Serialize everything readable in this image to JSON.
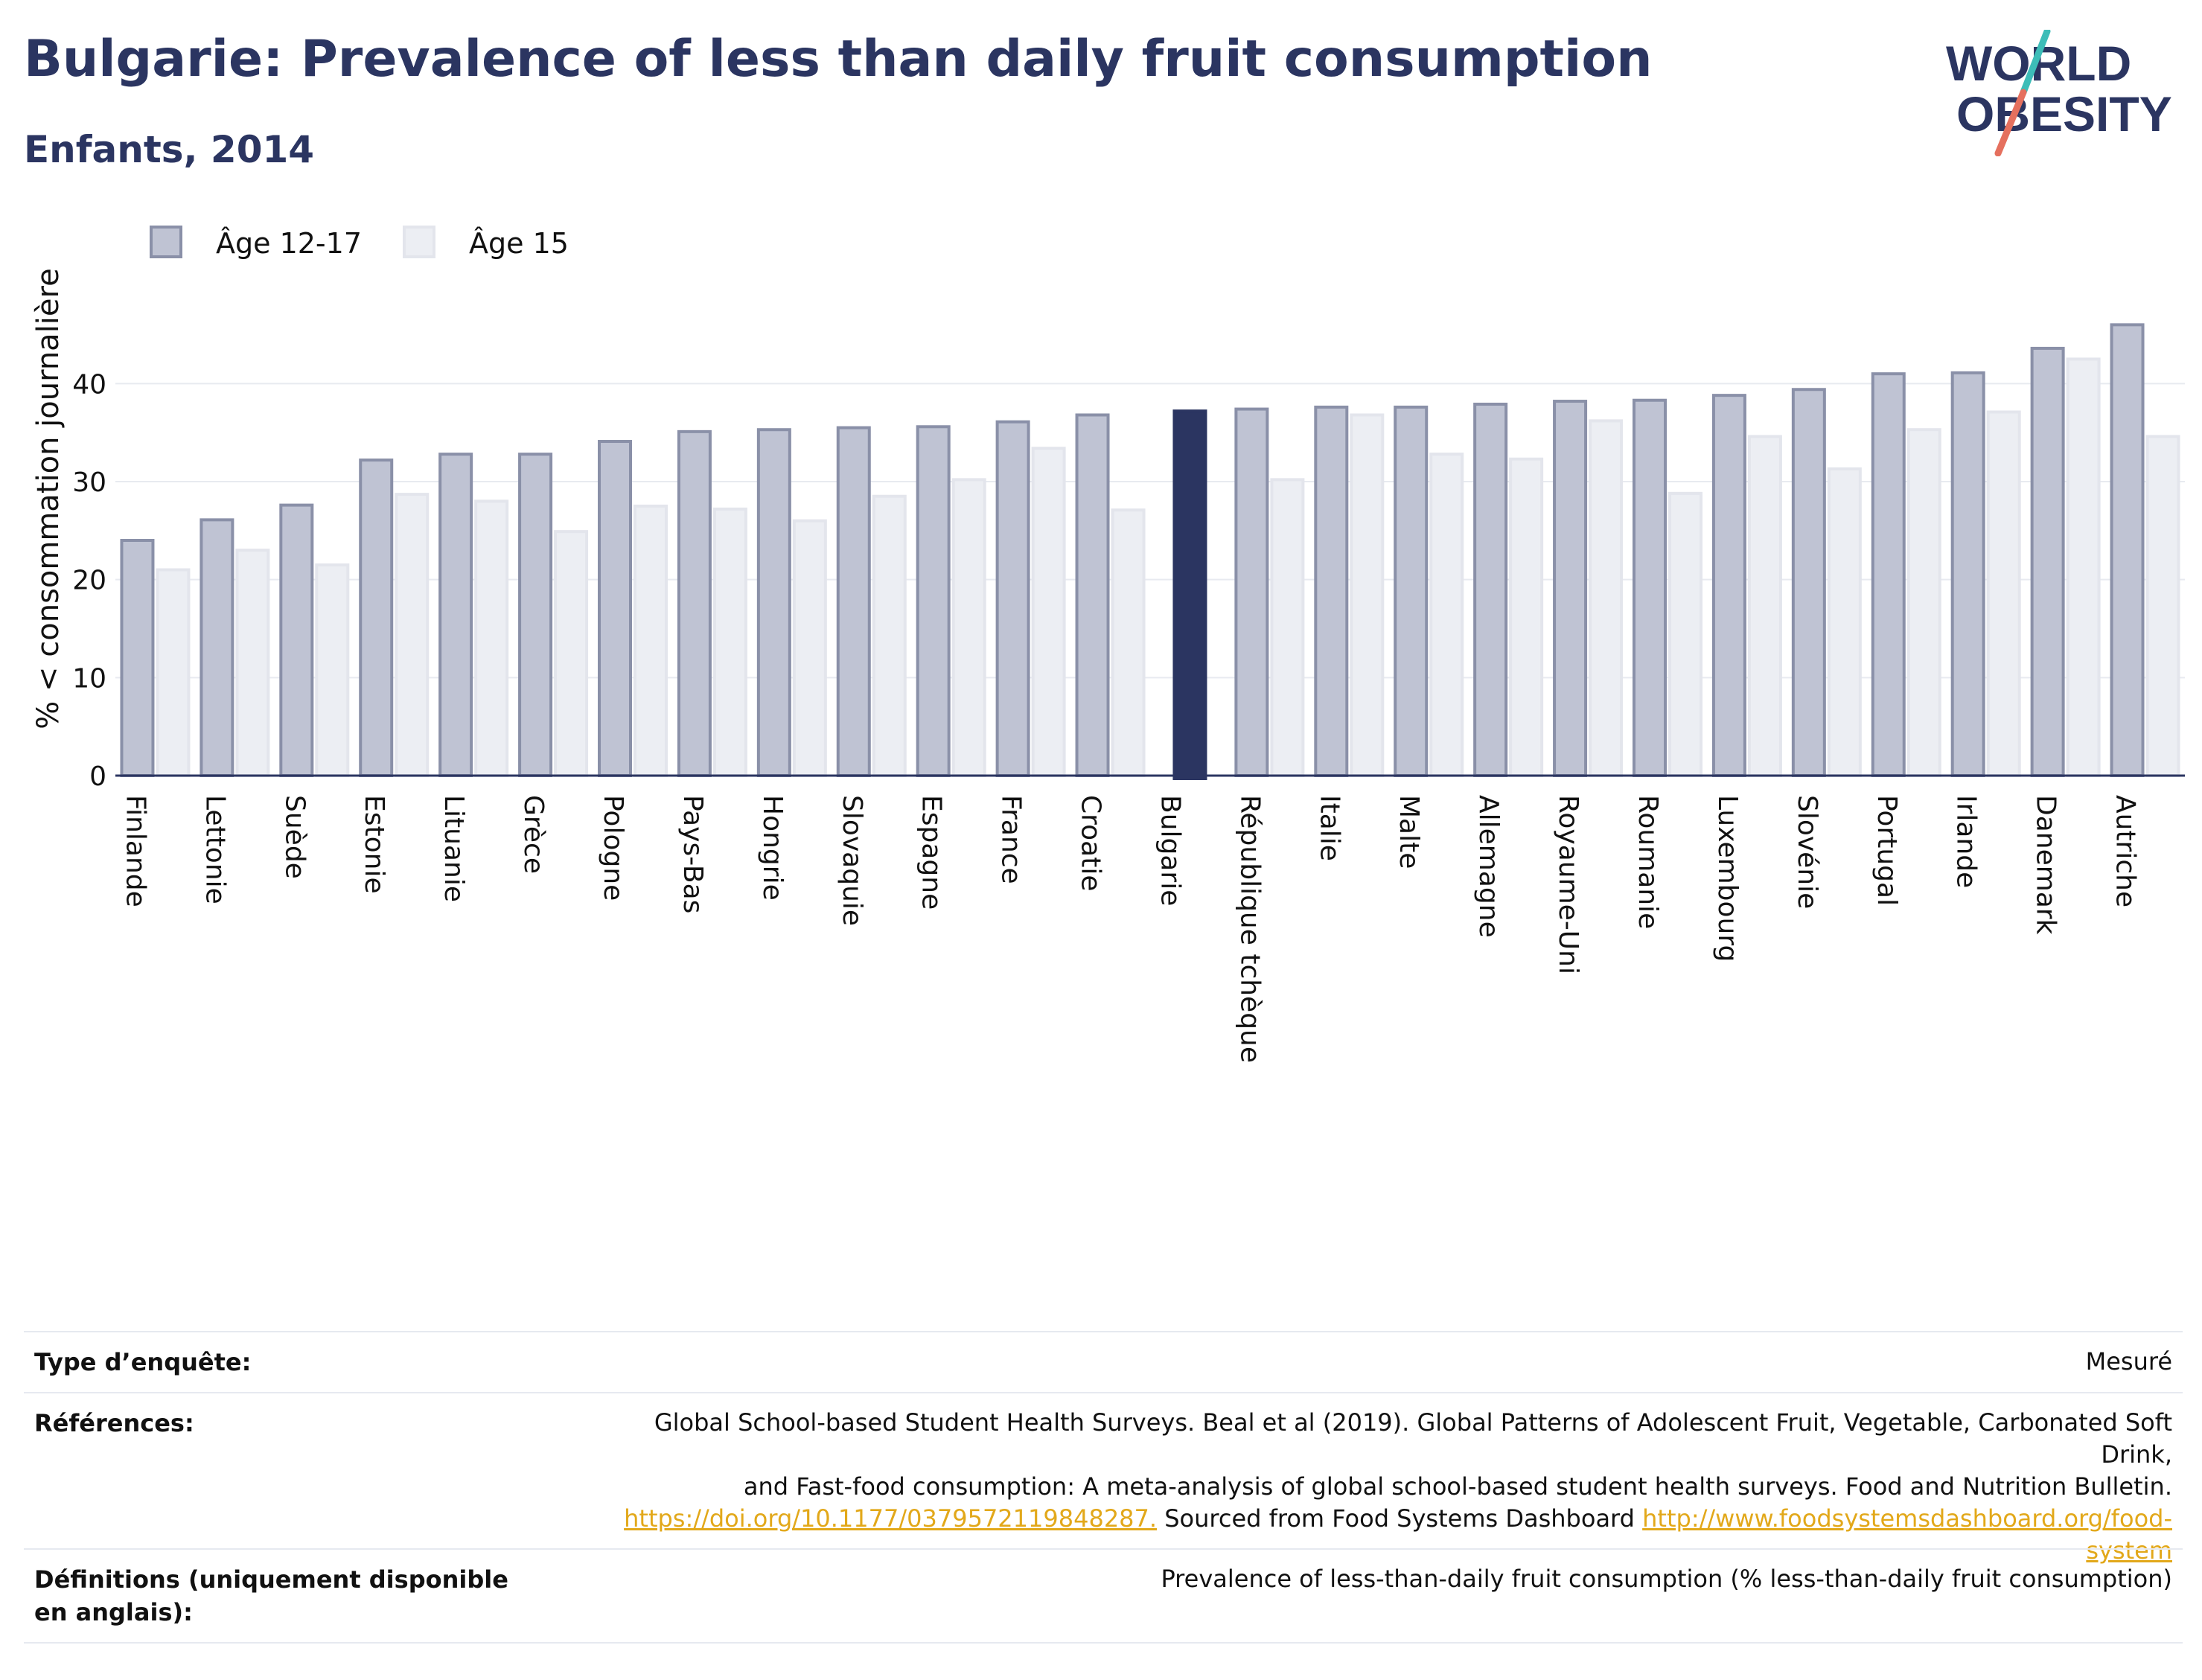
{
  "header": {
    "title": "Bulgarie: Prevalence of less than daily fruit consumption",
    "subtitle": "Enfants, 2014"
  },
  "logo": {
    "line1": "WORLD",
    "line2": "OBESITY"
  },
  "colors": {
    "series1_fill": "#bfc3d3",
    "series1_stroke": "#8a90a8",
    "series2_fill": "#eceef3",
    "series2_stroke": "#e3e5ec",
    "highlight": "#2b3561",
    "title": "#2b3561",
    "link": "#e2a81a",
    "logo_teal": "#3dbdb8",
    "logo_coral": "#e5705e"
  },
  "chart_data": {
    "type": "bar",
    "ylabel": "% < consommation journalière",
    "ylim": [
      0,
      48
    ],
    "yticks": [
      0,
      10,
      20,
      30,
      40
    ],
    "grid": true,
    "legend_position": "top-left",
    "highlight_category": "Bulgarie",
    "categories": [
      "Finlande",
      "Lettonie",
      "Suède",
      "Estonie",
      "Lituanie",
      "Grèce",
      "Pologne",
      "Pays-Bas",
      "Hongrie",
      "Slovaquie",
      "Espagne",
      "France",
      "Croatie",
      "Bulgarie",
      "République tchèque",
      "Italie",
      "Malte",
      "Allemagne",
      "Royaume-Uni",
      "Roumanie",
      "Luxembourg",
      "Slovénie",
      "Portugal",
      "Irlande",
      "Danemark",
      "Autriche"
    ],
    "series": [
      {
        "name": "Âge 12-17",
        "values": [
          24.0,
          26.1,
          27.6,
          32.2,
          32.8,
          32.8,
          34.1,
          35.1,
          35.3,
          35.5,
          35.6,
          36.1,
          36.8,
          37.2,
          37.4,
          37.6,
          37.6,
          37.9,
          38.2,
          38.3,
          38.8,
          39.4,
          41.0,
          41.1,
          43.6,
          46.0
        ]
      },
      {
        "name": "Âge 15",
        "values": [
          21.0,
          23.0,
          21.5,
          28.7,
          28.0,
          24.9,
          27.5,
          27.2,
          26.0,
          28.5,
          30.2,
          33.4,
          27.1,
          null,
          30.2,
          36.8,
          32.8,
          32.3,
          36.2,
          28.8,
          34.6,
          31.3,
          35.3,
          37.1,
          42.5,
          34.6
        ]
      }
    ]
  },
  "footer": {
    "rows": [
      {
        "label": "Type d’enquête:",
        "value_lines": [
          "Mesuré"
        ]
      },
      {
        "label": "Références:",
        "value_lines": [
          "Global School-based Student Health Surveys. Beal et al (2019). Global Patterns of Adolescent Fruit, Vegetable, Carbonated Soft Drink,",
          "and Fast-food consumption: A meta-analysis of global school-based student health surveys. Food and Nutrition Bulletin."
        ],
        "link1": "https://doi.org/10.1177/0379572119848287.",
        "mid_text": " Sourced from Food Systems Dashboard ",
        "link2a": "http://www.foodsystemsdashboard.org/food-",
        "link2b": "system"
      },
      {
        "label": "Définitions (uniquement disponible en anglais):",
        "value_lines": [
          "Prevalence of less-than-daily fruit consumption (% less-than-daily fruit consumption)"
        ]
      }
    ]
  }
}
